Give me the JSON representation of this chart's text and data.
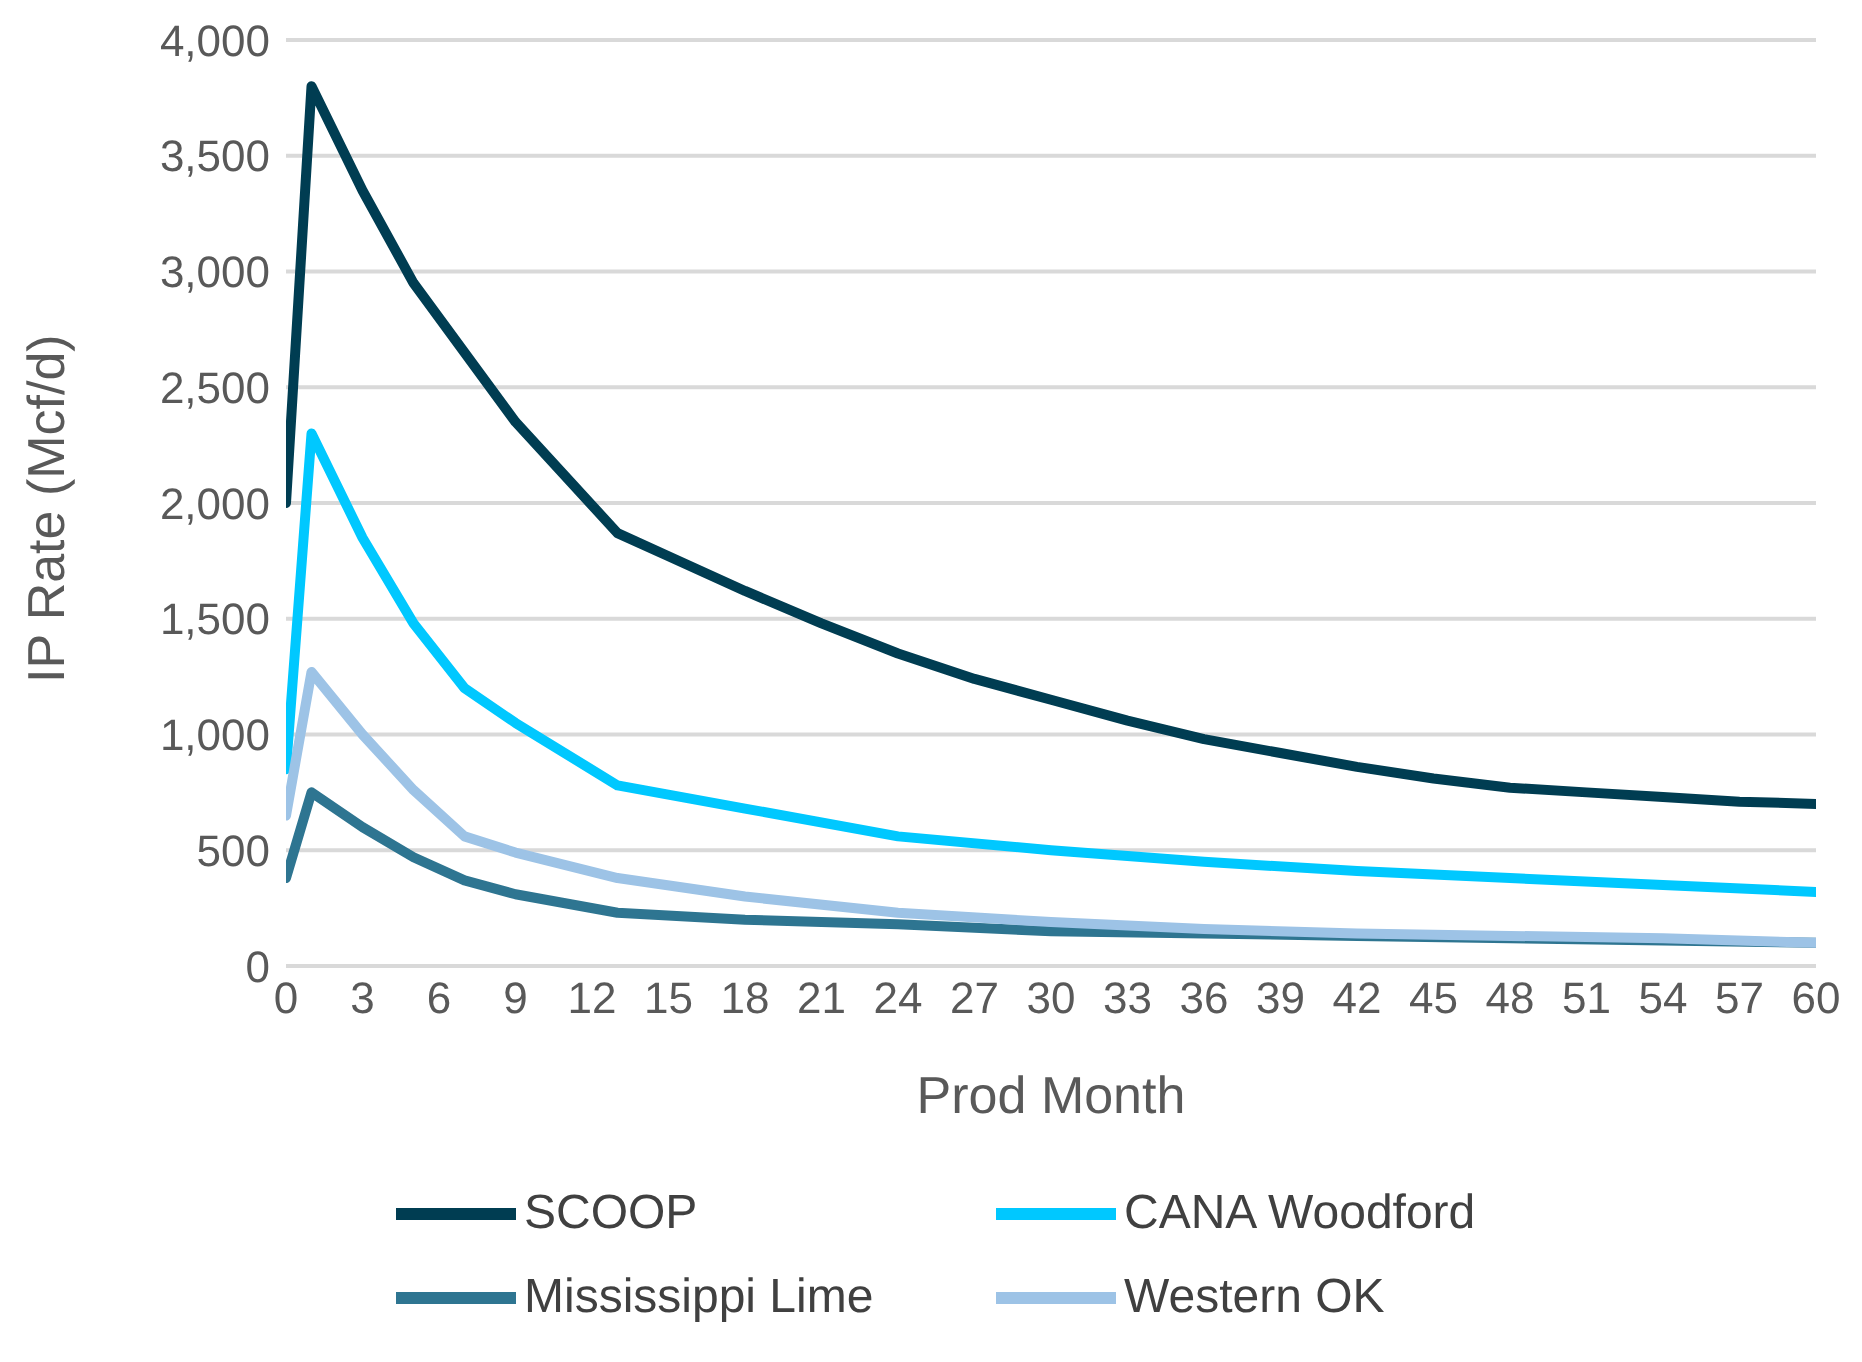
{
  "chart_data": {
    "type": "line",
    "xlabel": "Prod Month",
    "ylabel": "IP Rate (Mcf/d)",
    "xlim": [
      0,
      60
    ],
    "xticks": [
      0,
      3,
      6,
      9,
      12,
      15,
      18,
      21,
      24,
      27,
      30,
      33,
      36,
      39,
      42,
      45,
      48,
      51,
      54,
      57,
      60
    ],
    "ylim": [
      0,
      4000
    ],
    "yticks": [
      {
        "value": 0,
        "label": "0"
      },
      {
        "value": 500,
        "label": "500"
      },
      {
        "value": 1000,
        "label": "1,000"
      },
      {
        "value": 1500,
        "label": "1,500"
      },
      {
        "value": 2000,
        "label": "2,000"
      },
      {
        "value": 2500,
        "label": "2,500"
      },
      {
        "value": 3000,
        "label": "3,000"
      },
      {
        "value": 3500,
        "label": "3,500"
      },
      {
        "value": 4000,
        "label": "4,000"
      }
    ],
    "grid": "y",
    "legend": "bottom",
    "marker": "none",
    "line_style": "solid",
    "series": [
      {
        "name": "SCOOP",
        "color": "#003d52",
        "x": [
          0,
          1,
          3,
          5,
          7,
          9,
          13,
          15,
          18,
          21,
          24,
          27,
          30,
          33,
          36,
          39,
          42,
          45,
          48,
          51,
          54,
          57,
          60
        ],
        "values": [
          2000,
          3800,
          3350,
          2950,
          2650,
          2350,
          1870,
          1770,
          1620,
          1480,
          1350,
          1240,
          1150,
          1060,
          980,
          920,
          860,
          810,
          770,
          750,
          730,
          710,
          700
        ]
      },
      {
        "name": "CANA Woodford",
        "color": "#00c8ff",
        "x": [
          0,
          1,
          3,
          5,
          7,
          9,
          13,
          18,
          24,
          30,
          36,
          42,
          48,
          54,
          60
        ],
        "values": [
          850,
          2300,
          1850,
          1480,
          1200,
          1050,
          780,
          680,
          560,
          500,
          450,
          410,
          380,
          350,
          320
        ]
      },
      {
        "name": "Mississippi Lime",
        "color": "#2e7591",
        "x": [
          0,
          1,
          3,
          5,
          7,
          9,
          13,
          18,
          24,
          30,
          36,
          42,
          48,
          54,
          60
        ],
        "values": [
          380,
          750,
          600,
          470,
          370,
          310,
          230,
          200,
          180,
          150,
          140,
          130,
          120,
          110,
          100
        ]
      },
      {
        "name": "Western OK",
        "color": "#9dc3e6",
        "x": [
          0,
          1,
          3,
          5,
          7,
          9,
          13,
          18,
          24,
          30,
          36,
          42,
          48,
          54,
          60
        ],
        "values": [
          650,
          1270,
          1000,
          760,
          560,
          490,
          380,
          300,
          230,
          190,
          160,
          140,
          130,
          120,
          100
        ]
      }
    ]
  }
}
